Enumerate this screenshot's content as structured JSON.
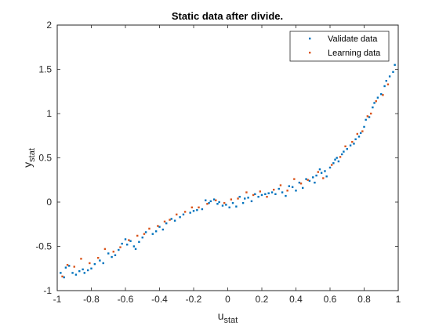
{
  "chart_data": {
    "type": "scatter",
    "title": "Static data after divide.",
    "xlabel": {
      "main": "u",
      "sub": "stat"
    },
    "ylabel": {
      "main": "y",
      "sub": "stat"
    },
    "xlim": [
      -1,
      1
    ],
    "ylim": [
      -1,
      2
    ],
    "xticks": [
      -1,
      -0.8,
      -0.6,
      -0.4,
      -0.2,
      0,
      0.2,
      0.4,
      0.6,
      0.8,
      1
    ],
    "yticks": [
      -1,
      -0.5,
      0,
      0.5,
      1,
      1.5,
      2
    ],
    "xtick_labels": [
      "-1",
      "-0.8",
      "-0.6",
      "-0.4",
      "-0.2",
      "0",
      "0.2",
      "0.4",
      "0.6",
      "0.8",
      "1"
    ],
    "ytick_labels": [
      "-1",
      "-0.5",
      "0",
      "0.5",
      "1",
      "1.5",
      "2"
    ],
    "grid": false,
    "legend_position": "top-right",
    "series": [
      {
        "name": "Validate data",
        "color": "#0072BD",
        "points": [
          [
            -0.98,
            -0.8
          ],
          [
            -0.96,
            -0.85
          ],
          [
            -0.95,
            -0.74
          ],
          [
            -0.93,
            -0.72
          ],
          [
            -0.91,
            -0.8
          ],
          [
            -0.89,
            -0.82
          ],
          [
            -0.87,
            -0.78
          ],
          [
            -0.85,
            -0.76
          ],
          [
            -0.84,
            -0.8
          ],
          [
            -0.82,
            -0.77
          ],
          [
            -0.8,
            -0.75
          ],
          [
            -0.78,
            -0.7
          ],
          [
            -0.75,
            -0.66
          ],
          [
            -0.73,
            -0.69
          ],
          [
            -0.7,
            -0.58
          ],
          [
            -0.68,
            -0.62
          ],
          [
            -0.66,
            -0.6
          ],
          [
            -0.64,
            -0.54
          ],
          [
            -0.62,
            -0.47
          ],
          [
            -0.6,
            -0.42
          ],
          [
            -0.59,
            -0.48
          ],
          [
            -0.57,
            -0.44
          ],
          [
            -0.55,
            -0.5
          ],
          [
            -0.54,
            -0.53
          ],
          [
            -0.52,
            -0.45
          ],
          [
            -0.5,
            -0.4
          ],
          [
            -0.48,
            -0.34
          ],
          [
            -0.44,
            -0.36
          ],
          [
            -0.42,
            -0.33
          ],
          [
            -0.4,
            -0.28
          ],
          [
            -0.38,
            -0.31
          ],
          [
            -0.36,
            -0.24
          ],
          [
            -0.33,
            -0.19
          ],
          [
            -0.31,
            -0.21
          ],
          [
            -0.28,
            -0.17
          ],
          [
            -0.26,
            -0.14
          ],
          [
            -0.22,
            -0.12
          ],
          [
            -0.2,
            -0.1
          ],
          [
            -0.18,
            -0.09
          ],
          [
            -0.15,
            -0.08
          ],
          [
            -0.13,
            0.02
          ],
          [
            -0.11,
            -0.01
          ],
          [
            -0.1,
            0.01
          ],
          [
            -0.08,
            0.03
          ],
          [
            -0.06,
            -0.02
          ],
          [
            -0.05,
            0.0
          ],
          [
            -0.03,
            -0.04
          ],
          [
            -0.01,
            -0.03
          ],
          [
            0.01,
            -0.06
          ],
          [
            0.03,
            -0.01
          ],
          [
            0.05,
            -0.05
          ],
          [
            0.07,
            0.06
          ],
          [
            0.09,
            -0.01
          ],
          [
            0.1,
            0.04
          ],
          [
            0.12,
            0.05
          ],
          [
            0.14,
            0.01
          ],
          [
            0.16,
            0.09
          ],
          [
            0.18,
            0.06
          ],
          [
            0.2,
            0.08
          ],
          [
            0.22,
            0.09
          ],
          [
            0.24,
            0.1
          ],
          [
            0.26,
            0.11
          ],
          [
            0.28,
            0.09
          ],
          [
            0.3,
            0.15
          ],
          [
            0.32,
            0.11
          ],
          [
            0.34,
            0.07
          ],
          [
            0.36,
            0.18
          ],
          [
            0.38,
            0.17
          ],
          [
            0.4,
            0.13
          ],
          [
            0.42,
            0.22
          ],
          [
            0.44,
            0.16
          ],
          [
            0.46,
            0.26
          ],
          [
            0.48,
            0.24
          ],
          [
            0.5,
            0.28
          ],
          [
            0.51,
            0.22
          ],
          [
            0.52,
            0.3
          ],
          [
            0.54,
            0.37
          ],
          [
            0.55,
            0.33
          ],
          [
            0.57,
            0.35
          ],
          [
            0.58,
            0.29
          ],
          [
            0.6,
            0.39
          ],
          [
            0.62,
            0.44
          ],
          [
            0.63,
            0.48
          ],
          [
            0.64,
            0.5
          ],
          [
            0.65,
            0.46
          ],
          [
            0.67,
            0.54
          ],
          [
            0.68,
            0.57
          ],
          [
            0.7,
            0.6
          ],
          [
            0.72,
            0.64
          ],
          [
            0.74,
            0.66
          ],
          [
            0.75,
            0.71
          ],
          [
            0.77,
            0.74
          ],
          [
            0.78,
            0.78
          ],
          [
            0.8,
            0.85
          ],
          [
            0.81,
            0.93
          ],
          [
            0.83,
            0.96
          ],
          [
            0.85,
            1.07
          ],
          [
            0.86,
            1.12
          ],
          [
            0.88,
            1.18
          ],
          [
            0.9,
            1.22
          ],
          [
            0.92,
            1.31
          ],
          [
            0.93,
            1.37
          ],
          [
            0.95,
            1.42
          ],
          [
            0.97,
            1.47
          ],
          [
            0.98,
            1.55
          ]
        ]
      },
      {
        "name": "Learning data",
        "color": "#D95319",
        "points": [
          [
            -0.97,
            -0.84
          ],
          [
            -0.94,
            -0.71
          ],
          [
            -0.9,
            -0.73
          ],
          [
            -0.86,
            -0.64
          ],
          [
            -0.81,
            -0.69
          ],
          [
            -0.76,
            -0.63
          ],
          [
            -0.72,
            -0.53
          ],
          [
            -0.67,
            -0.56
          ],
          [
            -0.63,
            -0.51
          ],
          [
            -0.58,
            -0.43
          ],
          [
            -0.53,
            -0.38
          ],
          [
            -0.49,
            -0.36
          ],
          [
            -0.46,
            -0.3
          ],
          [
            -0.41,
            -0.27
          ],
          [
            -0.37,
            -0.22
          ],
          [
            -0.34,
            -0.2
          ],
          [
            -0.3,
            -0.14
          ],
          [
            -0.25,
            -0.11
          ],
          [
            -0.21,
            -0.06
          ],
          [
            -0.17,
            -0.06
          ],
          [
            -0.12,
            -0.02
          ],
          [
            -0.07,
            0.02
          ],
          [
            -0.02,
            -0.01
          ],
          [
            0.02,
            0.03
          ],
          [
            0.06,
            0.04
          ],
          [
            0.11,
            0.11
          ],
          [
            0.15,
            0.08
          ],
          [
            0.19,
            0.12
          ],
          [
            0.23,
            0.06
          ],
          [
            0.27,
            0.14
          ],
          [
            0.31,
            0.19
          ],
          [
            0.35,
            0.13
          ],
          [
            0.39,
            0.26
          ],
          [
            0.43,
            0.21
          ],
          [
            0.47,
            0.25
          ],
          [
            0.53,
            0.34
          ],
          [
            0.56,
            0.27
          ],
          [
            0.61,
            0.42
          ],
          [
            0.66,
            0.51
          ],
          [
            0.69,
            0.63
          ],
          [
            0.73,
            0.68
          ],
          [
            0.76,
            0.77
          ],
          [
            0.79,
            0.8
          ],
          [
            0.82,
            0.97
          ],
          [
            0.84,
            1.0
          ],
          [
            0.87,
            1.14
          ],
          [
            0.91,
            1.21
          ],
          [
            0.94,
            1.33
          ]
        ]
      }
    ]
  }
}
